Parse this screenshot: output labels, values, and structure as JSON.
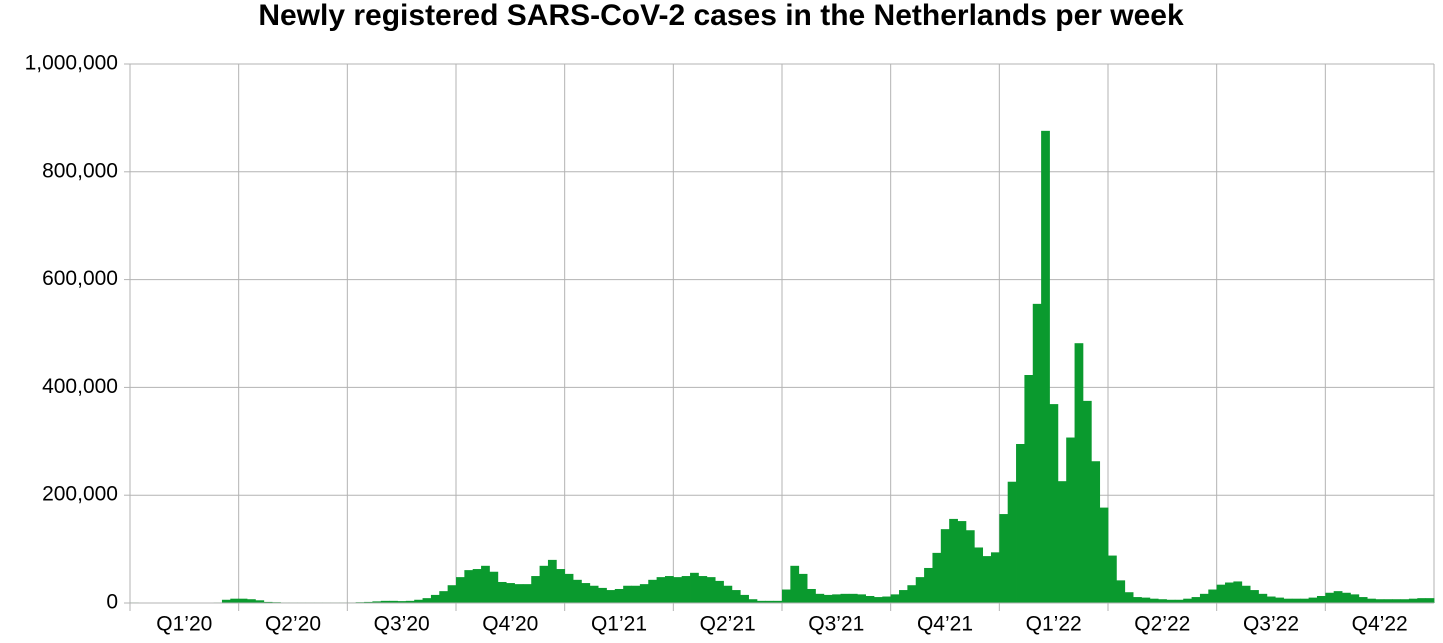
{
  "chart_data": {
    "type": "bar",
    "title": "Newly registered SARS-CoV-2 cases in the Netherlands per week",
    "categories": [
      null,
      null,
      null,
      null,
      null,
      null,
      "Q1’20",
      null,
      null,
      null,
      null,
      null,
      null,
      null,
      null,
      null,
      null,
      null,
      null,
      "Q2’20",
      null,
      null,
      null,
      null,
      null,
      null,
      null,
      null,
      null,
      null,
      null,
      null,
      "Q3’20",
      null,
      null,
      null,
      null,
      null,
      null,
      null,
      null,
      null,
      null,
      null,
      null,
      "Q4’20",
      null,
      null,
      null,
      null,
      null,
      null,
      null,
      null,
      null,
      null,
      null,
      null,
      "Q1’21",
      null,
      null,
      null,
      null,
      null,
      null,
      null,
      null,
      null,
      null,
      null,
      null,
      "Q2’21",
      null,
      null,
      null,
      null,
      null,
      null,
      null,
      null,
      null,
      null,
      null,
      null,
      "Q3’21",
      null,
      null,
      null,
      null,
      null,
      null,
      null,
      null,
      null,
      null,
      null,
      null,
      "Q4’21",
      null,
      null,
      null,
      null,
      null,
      null,
      null,
      null,
      null,
      null,
      null,
      null,
      "Q1’22",
      null,
      null,
      null,
      null,
      null,
      null,
      null,
      null,
      null,
      null,
      null,
      null,
      "Q2’22",
      null,
      null,
      null,
      null,
      null,
      null,
      null,
      null,
      null,
      null,
      null,
      null,
      "Q3’22",
      null,
      null,
      null,
      null,
      null,
      null,
      null,
      null,
      null,
      null,
      null,
      null,
      "Q4’22",
      null,
      null,
      null,
      null,
      null,
      null
    ],
    "values": [
      1000,
      0,
      0,
      0,
      0,
      0,
      0,
      0,
      0,
      500,
      1000,
      6000,
      8000,
      8000,
      7000,
      5000,
      2000,
      1500,
      1000,
      1000,
      1000,
      1000,
      1000,
      1000,
      1000,
      1000,
      1000,
      1500,
      2000,
      3000,
      4000,
      4000,
      3500,
      4000,
      6000,
      9000,
      15000,
      22000,
      33000,
      48000,
      61000,
      63000,
      69000,
      58000,
      39000,
      37000,
      35000,
      35000,
      50000,
      69000,
      80000,
      63000,
      54000,
      43000,
      37000,
      32000,
      28000,
      24000,
      26000,
      32000,
      32000,
      35000,
      43000,
      48000,
      50000,
      48000,
      50000,
      56000,
      50000,
      48000,
      41000,
      32000,
      24000,
      15000,
      7000,
      4000,
      4000,
      4000,
      25000,
      69000,
      54000,
      26000,
      17000,
      15000,
      16000,
      17000,
      17000,
      16000,
      13000,
      11000,
      12000,
      16000,
      24000,
      33000,
      48000,
      65000,
      93000,
      137000,
      156000,
      152000,
      135000,
      103000,
      87000,
      94000,
      165000,
      225000,
      295000,
      423000,
      555000,
      876000,
      369000,
      226000,
      307000,
      482000,
      375000,
      263000,
      177000,
      88000,
      42000,
      20000,
      11000,
      10000,
      8000,
      7000,
      6000,
      6000,
      8000,
      11000,
      17000,
      25000,
      34000,
      38000,
      40000,
      32000,
      24000,
      17000,
      12000,
      10000,
      8000,
      8000,
      8000,
      10000,
      13000,
      19000,
      22000,
      19000,
      16000,
      11000,
      8000,
      7000,
      7000,
      7000,
      7000,
      8000,
      9000,
      9000
    ],
    "color": "#0a9a2e",
    "ylim": [
      0,
      1000000
    ],
    "yticks": [
      0,
      {
        "value": 200000,
        "label": "200,000"
      },
      {
        "value": 400000,
        "label": "400,000"
      },
      {
        "value": 600000,
        "label": "600,000"
      },
      {
        "value": 800000,
        "label": "800,000"
      },
      {
        "value": 1000000,
        "label": "1,000,000"
      }
    ],
    "grid": true
  }
}
